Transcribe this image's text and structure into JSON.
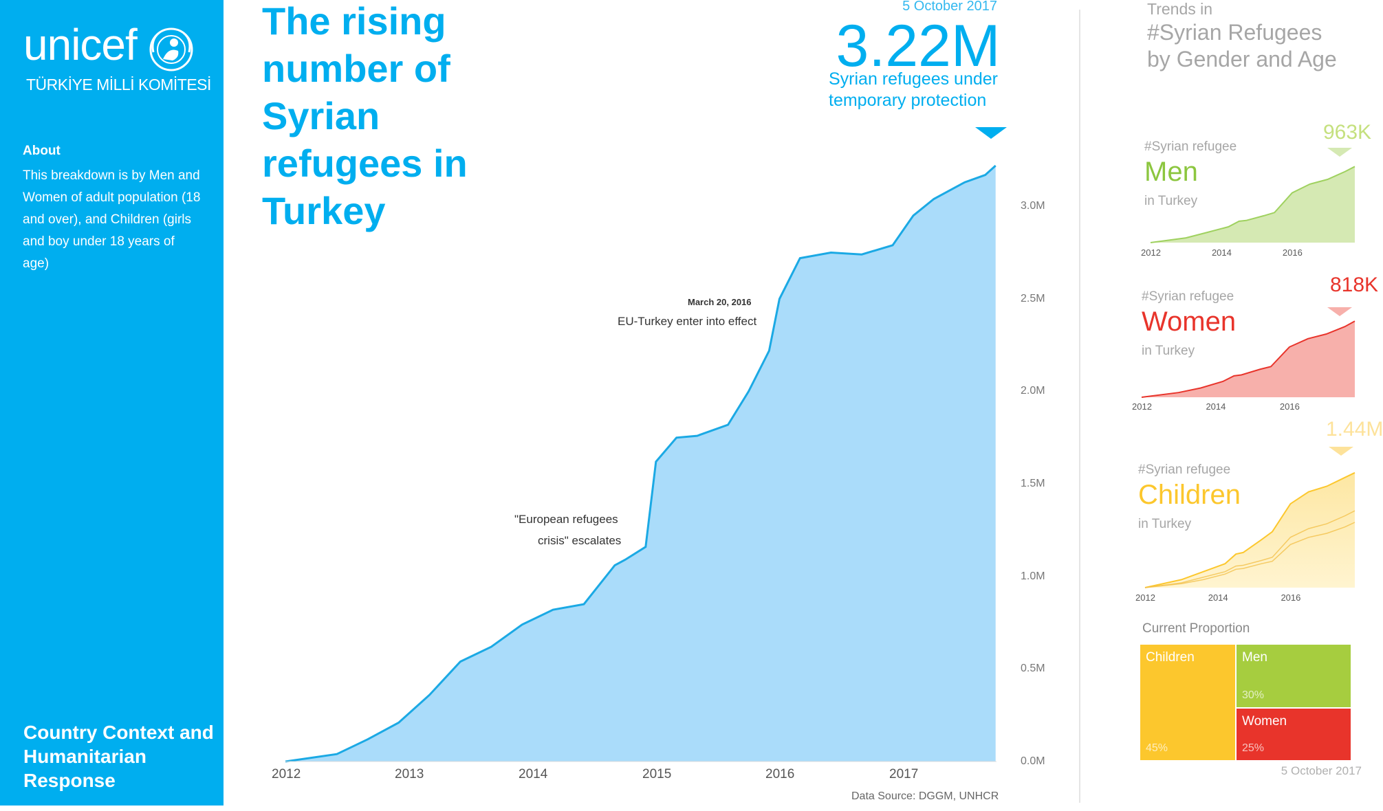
{
  "sidebar": {
    "logo_text": "unicef",
    "logo_subtitle": "TÜRKİYE MİLLİ KOMİTESİ",
    "about_title": "About",
    "about_text": "This breakdown is by Men and Women  of adult population (18 and over), and Children (girls and boy under 18 years of age)",
    "section_title": "Country Context and Humanitarian Response"
  },
  "header": {
    "title": "The rising number of Syrian refugees in Turkey",
    "date": "5 October 2017",
    "total_value": "3.22M",
    "total_label": "Syrian refugees under temporary protection"
  },
  "annotations": {
    "eu_date": "March 20, 2016",
    "eu_text": "EU-Turkey enter into effect",
    "crisis_line1": "\"European refugees",
    "crisis_line2": "crisis\" escalates"
  },
  "source": "Data Source: DGGM, UNHCR",
  "right_panel": {
    "title_small": "Trends in",
    "title_large_1": "#Syrian Refugees",
    "title_large_2": "by Gender and Age",
    "prefix": "#Syrian refugee",
    "suffix": "in Turkey",
    "men": {
      "label": "Men",
      "latest": "963K",
      "color": "#8cc63f"
    },
    "women": {
      "label": "Women",
      "latest": "818K",
      "color": "#e8342b"
    },
    "children": {
      "label": "Children",
      "latest": "1.44M",
      "color": "#fcc72d"
    },
    "proportion_title": "Current Proportion",
    "proportion_date": "5 October 2017",
    "proportion": [
      {
        "name": "Children",
        "pct": "45%",
        "value": 45,
        "color": "#fcc72d"
      },
      {
        "name": "Men",
        "pct": "30%",
        "value": 30,
        "color": "#a6cd3f"
      },
      {
        "name": "Women",
        "pct": "25%",
        "value": 25,
        "color": "#e8342b"
      }
    ]
  },
  "chart_data": [
    {
      "type": "area",
      "title": "The rising number of Syrian refugees in Turkey",
      "x": [
        "2012-01",
        "2012-06",
        "2012-09",
        "2012-12",
        "2013-03",
        "2013-06",
        "2013-09",
        "2013-12",
        "2014-03",
        "2014-06",
        "2014-09",
        "2014-10",
        "2014-12",
        "2015-01",
        "2015-03",
        "2015-05",
        "2015-08",
        "2015-10",
        "2015-12",
        "2016-01",
        "2016-03",
        "2016-06",
        "2016-09",
        "2016-12",
        "2017-02",
        "2017-04",
        "2017-06",
        "2017-07",
        "2017-09",
        "2017-10"
      ],
      "values": [
        0.0,
        0.04,
        0.12,
        0.21,
        0.36,
        0.54,
        0.62,
        0.74,
        0.82,
        0.85,
        1.06,
        1.09,
        1.16,
        1.62,
        1.75,
        1.76,
        1.82,
        2.0,
        2.22,
        2.5,
        2.72,
        2.75,
        2.74,
        2.79,
        2.95,
        3.04,
        3.1,
        3.13,
        3.17,
        3.22
      ],
      "x_ticks": [
        "2012",
        "2013",
        "2014",
        "2015",
        "2016",
        "2017"
      ],
      "y_ticks": [
        "0.0M",
        "0.5M",
        "1.0M",
        "1.5M",
        "2.0M",
        "2.5M",
        "3.0M"
      ],
      "ylim": [
        0,
        3.22
      ],
      "unit": "millions",
      "color": "#1ba9e4"
    },
    {
      "type": "area",
      "series": [
        {
          "name": "Men",
          "x": [
            2012.0,
            2013.0,
            2013.6,
            2014.2,
            2014.5,
            2014.7,
            2015.2,
            2015.5,
            2016.0,
            2016.5,
            2017.0,
            2017.5,
            2017.77
          ],
          "values": [
            0,
            0.06,
            0.13,
            0.2,
            0.27,
            0.28,
            0.34,
            0.38,
            0.63,
            0.74,
            0.8,
            0.9,
            0.963
          ]
        },
        {
          "name": "Women",
          "x": [
            2012.0,
            2013.0,
            2013.6,
            2014.2,
            2014.5,
            2014.7,
            2015.2,
            2015.5,
            2016.0,
            2016.5,
            2017.0,
            2017.5,
            2017.77
          ],
          "values": [
            0,
            0.05,
            0.1,
            0.17,
            0.23,
            0.24,
            0.3,
            0.33,
            0.54,
            0.63,
            0.68,
            0.76,
            0.818
          ]
        },
        {
          "name": "Children",
          "x": [
            2012.0,
            2013.0,
            2013.6,
            2014.2,
            2014.5,
            2014.7,
            2015.2,
            2015.5,
            2016.0,
            2016.5,
            2017.0,
            2017.5,
            2017.77
          ],
          "values": [
            0,
            0.1,
            0.2,
            0.3,
            0.42,
            0.44,
            0.6,
            0.7,
            1.05,
            1.2,
            1.27,
            1.38,
            1.44
          ]
        }
      ],
      "x_ticks": [
        "2012",
        "2014",
        "2016"
      ],
      "unit": "millions"
    }
  ]
}
